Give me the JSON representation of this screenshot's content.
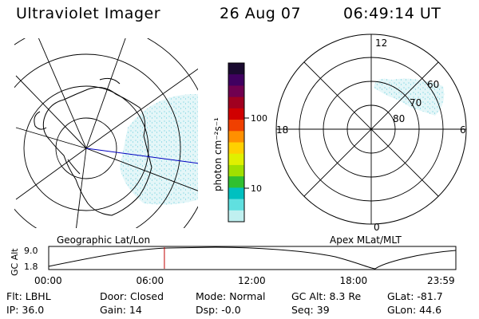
{
  "header": {
    "instrument": "Ultraviolet Imager",
    "date": "26 Aug 07",
    "time": "06:49:14 UT"
  },
  "left_map": {
    "caption": "Geographic Lat/Lon"
  },
  "right_map": {
    "caption": "Apex MLat/MLT",
    "mlt_labels": {
      "top": "12",
      "bottom": "0",
      "left": "18",
      "right": "6"
    },
    "lat_labels": [
      "60",
      "70",
      "80"
    ]
  },
  "colorbar": {
    "unit_label": "photon cm⁻²s⁻¹",
    "ticks": [
      "100",
      "10"
    ],
    "colors": [
      "#1a0a30",
      "#400060",
      "#700050",
      "#a00020",
      "#d00000",
      "#f04000",
      "#ff9000",
      "#ffd000",
      "#e0f000",
      "#a0e000",
      "#30c030",
      "#00c0c0",
      "#60e0e0",
      "#c0f0f0"
    ]
  },
  "altitude_plot": {
    "ylabel": "GC Alt",
    "yticks": [
      "9.0",
      "1.8"
    ],
    "xticks": [
      "00:00",
      "06:00",
      "12:00",
      "18:00",
      "23:59"
    ],
    "cursor_hour": 6.82
  },
  "info": {
    "flt": "Flt: LBHL",
    "door": "Door: Closed",
    "mode": "Mode: Normal",
    "gc_alt": "GC Alt: 8.3 Re",
    "glat": "GLat: -81.7",
    "ip": "IP: 36.0",
    "gain": "Gain: 14",
    "dsp": "Dsp:   -0.0",
    "seq": "Seq: 39",
    "glon": "GLon:  44.6"
  }
}
